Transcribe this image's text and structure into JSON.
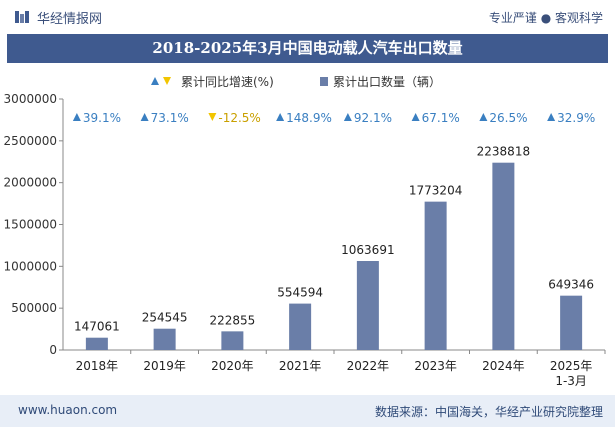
{
  "header": {
    "brand": "华经情报网",
    "tagline": "专业严谨 ● 客观科学"
  },
  "footer": {
    "url": "www.huaon.com",
    "source": "数据来源：中国海关，华经产业研究院整理"
  },
  "colors": {
    "bar": "#6a7ea8",
    "up": "#3a7fc1",
    "down": "#f2c500",
    "title_bg": "#3f5a8f"
  },
  "chart_data": {
    "type": "bar",
    "title": "2018-2025年3月中国电动载人汽车出口数量",
    "legend": {
      "growth_label": "累计同比增速(%)",
      "bar_label": "累计出口数量（辆）"
    },
    "categories": [
      "2018年",
      "2019年",
      "2020年",
      "2021年",
      "2022年",
      "2023年",
      "2024年",
      "2025年\n1-3月"
    ],
    "values": [
      147061,
      254545,
      222855,
      554594,
      1063691,
      1773204,
      2238818,
      649346
    ],
    "growth": [
      "39.1%",
      "73.1%",
      "-12.5%",
      "148.9%",
      "92.1%",
      "67.1%",
      "26.5%",
      "32.9%"
    ],
    "growth_direction": [
      "up",
      "up",
      "down",
      "up",
      "up",
      "up",
      "up",
      "up"
    ],
    "ylim": [
      0,
      3000000
    ],
    "yticks": [
      0,
      500000,
      1000000,
      1500000,
      2000000,
      2500000,
      3000000
    ],
    "grid": false
  }
}
